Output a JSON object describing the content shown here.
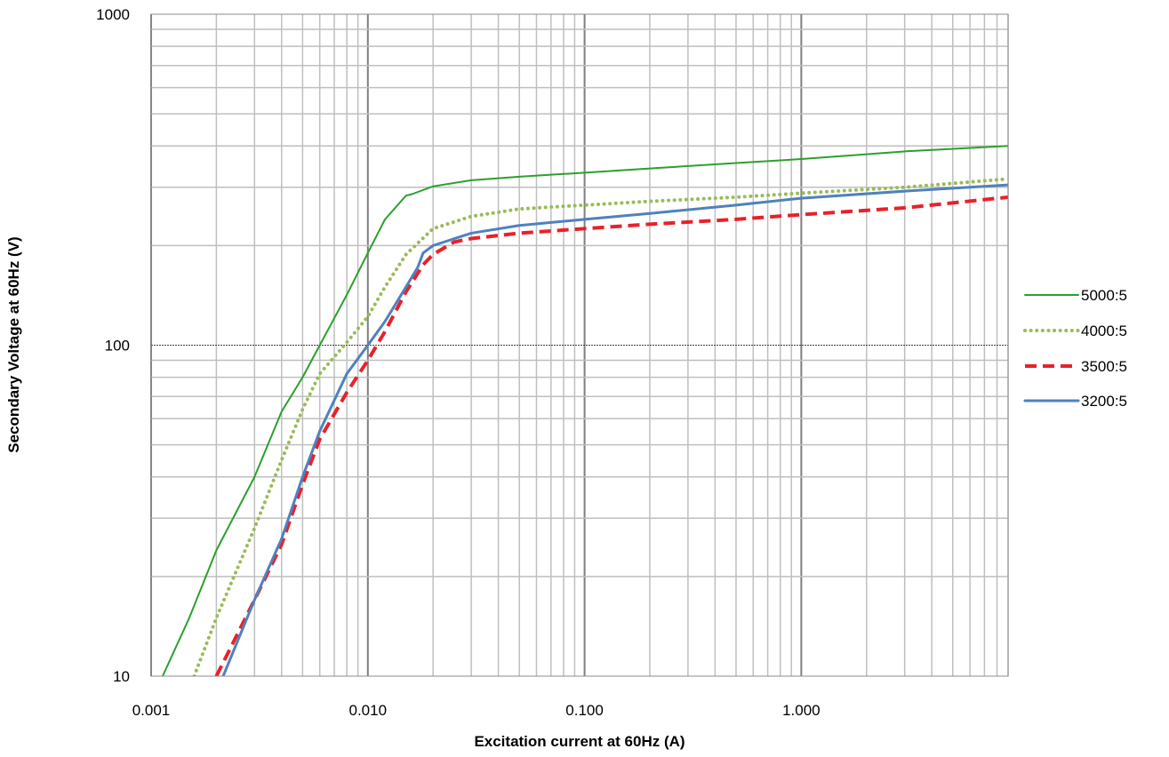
{
  "chart_data": {
    "type": "line",
    "xlabel": "Excitation current at 60Hz (A)",
    "ylabel": "Secondary Voltage at 60Hz (V)",
    "x_scale": "log",
    "y_scale": "log",
    "xlim": [
      0.001,
      9
    ],
    "ylim": [
      10,
      1000
    ],
    "x_ticks": [
      0.001,
      0.01,
      0.1,
      1
    ],
    "x_tick_labels": [
      "0.001",
      "0.010",
      "0.100",
      "1.000"
    ],
    "y_ticks": [
      10,
      100,
      1000
    ],
    "y_tick_labels": [
      "10",
      "100",
      "1000"
    ],
    "grid": true,
    "legend_position": "right",
    "series": [
      {
        "name": "5000:5",
        "color": "#2ca02c",
        "style": "solid",
        "points": [
          [
            0.00113,
            10
          ],
          [
            0.0015,
            15
          ],
          [
            0.002,
            24
          ],
          [
            0.003,
            40
          ],
          [
            0.004,
            63
          ],
          [
            0.005,
            80
          ],
          [
            0.006,
            100
          ],
          [
            0.008,
            142
          ],
          [
            0.01,
            190
          ],
          [
            0.012,
            240
          ],
          [
            0.015,
            283
          ],
          [
            0.016,
            286
          ],
          [
            0.02,
            302
          ],
          [
            0.03,
            315
          ],
          [
            0.05,
            323
          ],
          [
            0.1,
            332
          ],
          [
            0.2,
            342
          ],
          [
            0.5,
            355
          ],
          [
            1,
            365
          ],
          [
            3,
            385
          ],
          [
            9,
            400
          ]
        ]
      },
      {
        "name": "4000:5",
        "color": "#9bbb59",
        "style": "dotted",
        "points": [
          [
            0.00158,
            10
          ],
          [
            0.002,
            15
          ],
          [
            0.003,
            28
          ],
          [
            0.004,
            45
          ],
          [
            0.005,
            64
          ],
          [
            0.006,
            82
          ],
          [
            0.008,
            102
          ],
          [
            0.01,
            122
          ],
          [
            0.012,
            150
          ],
          [
            0.015,
            188
          ],
          [
            0.02,
            225
          ],
          [
            0.03,
            245
          ],
          [
            0.05,
            258
          ],
          [
            0.1,
            265
          ],
          [
            0.2,
            272
          ],
          [
            0.5,
            280
          ],
          [
            1,
            288
          ],
          [
            3,
            300
          ],
          [
            9,
            318
          ]
        ]
      },
      {
        "name": "3500:5",
        "color": "#e8212a",
        "style": "dashed",
        "points": [
          [
            0.002,
            10
          ],
          [
            0.003,
            17
          ],
          [
            0.004,
            25
          ],
          [
            0.005,
            38
          ],
          [
            0.006,
            52
          ],
          [
            0.008,
            72
          ],
          [
            0.01,
            90
          ],
          [
            0.012,
            110
          ],
          [
            0.015,
            145
          ],
          [
            0.018,
            175
          ],
          [
            0.02,
            188
          ],
          [
            0.025,
            205
          ],
          [
            0.03,
            210
          ],
          [
            0.05,
            218
          ],
          [
            0.1,
            225
          ],
          [
            0.2,
            232
          ],
          [
            0.5,
            240
          ],
          [
            1,
            248
          ],
          [
            3,
            260
          ],
          [
            9,
            280
          ]
        ]
      },
      {
        "name": "3200:5",
        "color": "#4f81bd",
        "style": "solid",
        "points": [
          [
            0.00215,
            10
          ],
          [
            0.003,
            17
          ],
          [
            0.004,
            26
          ],
          [
            0.005,
            40
          ],
          [
            0.006,
            55
          ],
          [
            0.008,
            82
          ],
          [
            0.01,
            100
          ],
          [
            0.012,
            118
          ],
          [
            0.015,
            150
          ],
          [
            0.017,
            172
          ],
          [
            0.018,
            190
          ],
          [
            0.02,
            200
          ],
          [
            0.03,
            218
          ],
          [
            0.05,
            230
          ],
          [
            0.1,
            240
          ],
          [
            0.2,
            250
          ],
          [
            0.5,
            265
          ],
          [
            1,
            278
          ],
          [
            3,
            292
          ],
          [
            9,
            305
          ]
        ]
      }
    ]
  }
}
